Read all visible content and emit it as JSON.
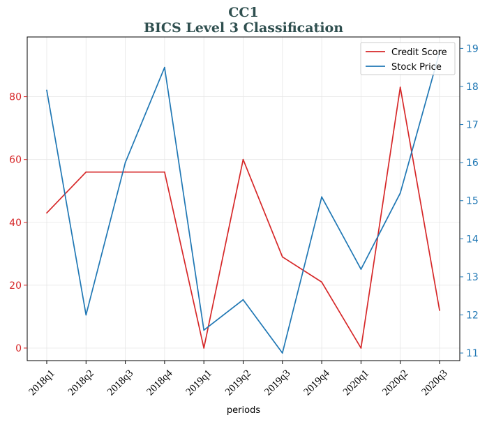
{
  "chart_data": {
    "type": "line",
    "title": "CC1",
    "subtitle": "BICS Level 3 Classification",
    "xlabel": "periods",
    "ylabel_left": "",
    "ylabel_right": "",
    "categories": [
      "2018q1",
      "2018q2",
      "2018q3",
      "2018q4",
      "2019q1",
      "2019q2",
      "2019q3",
      "2019q4",
      "2020q1",
      "2020q2",
      "2020q3"
    ],
    "series": [
      {
        "name": "Credit Score",
        "axis": "left",
        "color": "#d62728",
        "values": [
          43,
          56,
          56,
          56,
          0,
          60,
          29,
          21,
          0,
          83,
          12
        ]
      },
      {
        "name": "Stock Price",
        "axis": "right",
        "color": "#1f77b4",
        "values": [
          17.9,
          12.0,
          16.0,
          18.5,
          11.6,
          12.4,
          11.0,
          15.1,
          13.2,
          15.2,
          18.9
        ]
      }
    ],
    "ylim_left": [
      -4,
      99
    ],
    "ylim_right": [
      10.8,
      19.3
    ],
    "yticks_left": [
      0,
      20,
      40,
      60,
      80
    ],
    "yticks_right": [
      11,
      12,
      13,
      14,
      15,
      16,
      17,
      18,
      19
    ],
    "left_axis_color": "#d62728",
    "right_axis_color": "#1f77b4",
    "grid": true,
    "legend_position": "top-right"
  }
}
